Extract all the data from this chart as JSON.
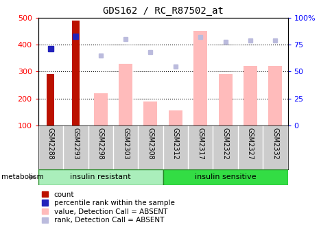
{
  "title": "GDS162 / RC_R87502_at",
  "samples": [
    "GSM2288",
    "GSM2293",
    "GSM2298",
    "GSM2303",
    "GSM2308",
    "GSM2312",
    "GSM2317",
    "GSM2322",
    "GSM2327",
    "GSM2332"
  ],
  "count_values": [
    290,
    490,
    0,
    0,
    0,
    0,
    0,
    0,
    0,
    0
  ],
  "percentile_rank": [
    385,
    430,
    null,
    null,
    null,
    null,
    null,
    null,
    null,
    null
  ],
  "absent_value": [
    null,
    null,
    220,
    330,
    190,
    155,
    450,
    290,
    320,
    320
  ],
  "absent_rank": [
    null,
    null,
    358,
    420,
    373,
    318,
    428,
    410,
    415,
    415
  ],
  "ylim_left": [
    100,
    500
  ],
  "ylim_right": [
    0,
    100
  ],
  "yticks_left": [
    100,
    200,
    300,
    400,
    500
  ],
  "yticks_right": [
    0,
    25,
    50,
    75,
    100
  ],
  "yticklabels_right": [
    "0",
    "25",
    "50",
    "75",
    "100%"
  ],
  "group1_label": "insulin resistant",
  "group2_label": "insulin sensitive",
  "group1_indices": [
    0,
    1,
    2,
    3,
    4
  ],
  "group2_indices": [
    5,
    6,
    7,
    8,
    9
  ],
  "group1_color": "#AAEEBB",
  "group2_color": "#33DD44",
  "bar_width": 0.55,
  "count_color": "#BB1100",
  "rank_color": "#2222BB",
  "absent_bar_color": "#FFBBBB",
  "absent_rank_color": "#BBBBDD",
  "grid_color": "black",
  "bg_color": "#FFFFFF",
  "label_bg_color": "#CCCCCC"
}
